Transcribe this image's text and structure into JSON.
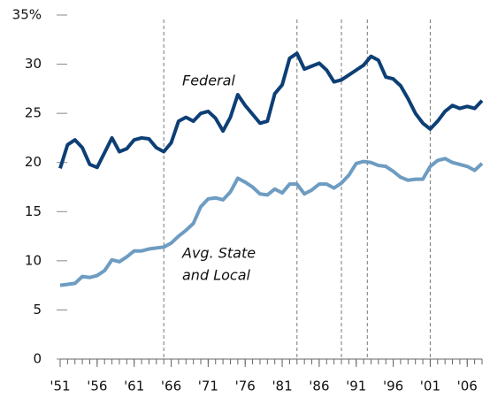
{
  "chart_data": {
    "type": "line",
    "x": [
      1951,
      1952,
      1953,
      1954,
      1955,
      1956,
      1957,
      1958,
      1959,
      1960,
      1961,
      1962,
      1963,
      1964,
      1965,
      1966,
      1967,
      1968,
      1969,
      1970,
      1971,
      1972,
      1973,
      1974,
      1975,
      1976,
      1977,
      1978,
      1979,
      1980,
      1981,
      1982,
      1983,
      1984,
      1985,
      1986,
      1987,
      1988,
      1989,
      1990,
      1991,
      1992,
      1993,
      1994,
      1995,
      1996,
      1997,
      1998,
      1999,
      2000,
      2001,
      2002,
      2003,
      2004,
      2005,
      2006,
      2007,
      2008
    ],
    "series": [
      {
        "name": "Federal",
        "color": "#0d3f75",
        "values": [
          19.4,
          21.8,
          22.3,
          21.5,
          19.8,
          19.5,
          21,
          22.5,
          21.1,
          21.4,
          22.3,
          22.5,
          22.4,
          21.5,
          21.1,
          22,
          24.2,
          24.6,
          24.2,
          25,
          25.2,
          24.5,
          23.2,
          24.6,
          26.9,
          25.8,
          24.9,
          24,
          24.2,
          27,
          27.9,
          30.6,
          31.1,
          29.5,
          29.8,
          30.1,
          29.4,
          28.2,
          28.4,
          28.9,
          29.4,
          29.9,
          30.8,
          30.4,
          28.7,
          28.5,
          27.8,
          26.5,
          25,
          24,
          23.4,
          24.2,
          25.2,
          25.8,
          25.5,
          25.7,
          25.5,
          26.3
        ]
      },
      {
        "name": "Avg. State and Local",
        "color": "#6e9cc2",
        "values": [
          7.5,
          7.6,
          7.7,
          8.4,
          8.3,
          8.5,
          9,
          10.1,
          9.9,
          10.4,
          11,
          11,
          11.2,
          11.3,
          11.4,
          11.8,
          12.5,
          13.1,
          13.8,
          15.5,
          16.3,
          16.4,
          16.2,
          17,
          18.4,
          18,
          17.5,
          16.8,
          16.7,
          17.3,
          16.9,
          17.8,
          17.8,
          16.8,
          17.2,
          17.8,
          17.8,
          17.4,
          17.9,
          18.7,
          19.9,
          20.1,
          20,
          19.7,
          19.6,
          19.1,
          18.5,
          18.2,
          18.3,
          18.3,
          19.6,
          20.2,
          20.4,
          20,
          19.8,
          19.6,
          19.2,
          19.9
        ]
      }
    ],
    "annotations": [
      "Federal",
      "Avg. State",
      "and Local"
    ],
    "xlim": [
      1951,
      2008
    ],
    "xticks": [
      {
        "value": 1951,
        "label": "'51"
      },
      {
        "value": 1956,
        "label": "'56"
      },
      {
        "value": 1961,
        "label": "'61"
      },
      {
        "value": 1966,
        "label": "'66"
      },
      {
        "value": 1971,
        "label": "'71"
      },
      {
        "value": 1976,
        "label": "'76"
      },
      {
        "value": 1981,
        "label": "'81"
      },
      {
        "value": 1986,
        "label": "'86"
      },
      {
        "value": 1991,
        "label": "'91"
      },
      {
        "value": 1996,
        "label": "'96"
      },
      {
        "value": 2001,
        "label": "'01"
      },
      {
        "value": 2006,
        "label": "'06"
      }
    ],
    "ylim": [
      0,
      35
    ],
    "yticks": [
      0,
      5,
      10,
      15,
      20,
      25,
      30,
      {
        "value": 35,
        "label": "35%"
      }
    ],
    "vlines": [
      1965,
      1983,
      1989,
      1992.5,
      2001
    ]
  }
}
